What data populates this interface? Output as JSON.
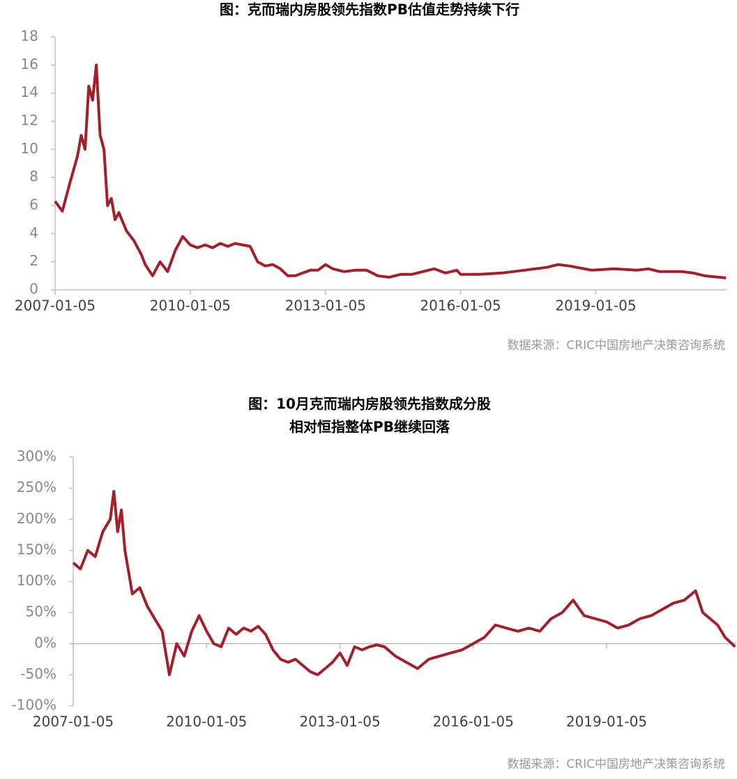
{
  "chart_data": [
    {
      "type": "line",
      "title": [
        "图：克而瑞内房股领先指数PB估值走势持续下行"
      ],
      "note": "数据来源：CRIC中国房地产决策咨询系统",
      "color": "#a3202b",
      "xlim": [
        "2007-01-05",
        "2021-11-30"
      ],
      "xticks": [
        "2007-01-05",
        "2010-01-05",
        "2013-01-05",
        "2016-01-05",
        "2019-01-05"
      ],
      "ylim": [
        0,
        18
      ],
      "yticks": [
        0,
        2,
        4,
        6,
        8,
        10,
        12,
        14,
        16,
        18
      ],
      "x": [
        "2007-01-05",
        "2007-03-05",
        "2007-05-05",
        "2007-07-05",
        "2007-08-05",
        "2007-09-05",
        "2007-10-05",
        "2007-11-05",
        "2007-12-05",
        "2008-01-05",
        "2008-02-05",
        "2008-03-05",
        "2008-04-05",
        "2008-05-05",
        "2008-06-05",
        "2008-08-05",
        "2008-10-05",
        "2008-12-05",
        "2009-01-05",
        "2009-03-05",
        "2009-05-05",
        "2009-07-05",
        "2009-09-05",
        "2009-11-05",
        "2010-01-05",
        "2010-03-05",
        "2010-05-05",
        "2010-07-05",
        "2010-09-05",
        "2010-11-05",
        "2011-01-05",
        "2011-03-05",
        "2011-05-05",
        "2011-07-05",
        "2011-09-05",
        "2011-11-05",
        "2012-01-05",
        "2012-03-05",
        "2012-05-05",
        "2012-07-05",
        "2012-09-05",
        "2012-11-05",
        "2013-01-05",
        "2013-03-05",
        "2013-06-05",
        "2013-09-05",
        "2013-12-05",
        "2014-03-05",
        "2014-06-05",
        "2014-09-05",
        "2014-12-05",
        "2015-03-05",
        "2015-06-05",
        "2015-09-05",
        "2015-12-05",
        "2016-01-05",
        "2016-06-05",
        "2016-12-05",
        "2017-06-05",
        "2017-12-05",
        "2018-03-05",
        "2018-06-05",
        "2018-12-05",
        "2019-06-05",
        "2019-12-05",
        "2020-03-05",
        "2020-06-05",
        "2020-12-05",
        "2021-03-05",
        "2021-06-05",
        "2021-11-26"
      ],
      "values": [
        6.3,
        5.6,
        7.6,
        9.5,
        11,
        10,
        14.5,
        13.5,
        16,
        11,
        10,
        6,
        6.5,
        5,
        5.5,
        4.2,
        3.5,
        2.5,
        1.8,
        1.0,
        2.0,
        1.3,
        2.8,
        3.8,
        3.2,
        3.0,
        3.2,
        3.0,
        3.3,
        3.1,
        3.3,
        3.2,
        3.1,
        2.0,
        1.7,
        1.8,
        1.5,
        1.0,
        1.0,
        1.2,
        1.4,
        1.4,
        1.8,
        1.5,
        1.3,
        1.4,
        1.4,
        1.0,
        0.9,
        1.1,
        1.1,
        1.3,
        1.5,
        1.2,
        1.4,
        1.1,
        1.1,
        1.2,
        1.4,
        1.6,
        1.8,
        1.7,
        1.4,
        1.5,
        1.4,
        1.5,
        1.3,
        1.3,
        1.2,
        1.0,
        0.85
      ]
    },
    {
      "type": "line",
      "title": [
        "图：10月克而瑞内房股领先指数成分股",
        "相对恒指整体PB继续回落"
      ],
      "note": "数据来源：CRIC中国房地产决策咨询系统",
      "color": "#a3202b",
      "xlim": [
        "2007-01-05",
        "2021-11-30"
      ],
      "xticks": [
        "2007-01-05",
        "2010-01-05",
        "2013-01-05",
        "2016-01-05",
        "2019-01-05"
      ],
      "ylim": [
        -100,
        300
      ],
      "yticks": [
        {
          "value": -100,
          "label": "-100%"
        },
        {
          "value": -50,
          "label": "-50%"
        },
        {
          "value": 0,
          "label": "0%"
        },
        {
          "value": 50,
          "label": "50%"
        },
        {
          "value": 100,
          "label": "100%"
        },
        {
          "value": 150,
          "label": "150%"
        },
        {
          "value": 200,
          "label": "200%"
        },
        {
          "value": 250,
          "label": "250%"
        },
        {
          "value": 300,
          "label": "300%"
        }
      ],
      "x": [
        "2007-01-05",
        "2007-03-05",
        "2007-05-05",
        "2007-07-05",
        "2007-09-05",
        "2007-11-05",
        "2007-12-05",
        "2008-01-05",
        "2008-02-05",
        "2008-03-05",
        "2008-05-05",
        "2008-07-05",
        "2008-09-05",
        "2008-11-05",
        "2009-01-05",
        "2009-03-05",
        "2009-05-05",
        "2009-07-05",
        "2009-09-05",
        "2009-11-05",
        "2010-01-05",
        "2010-03-05",
        "2010-05-05",
        "2010-07-05",
        "2010-09-05",
        "2010-11-05",
        "2011-01-05",
        "2011-03-05",
        "2011-05-05",
        "2011-07-05",
        "2011-09-05",
        "2011-11-05",
        "2012-01-05",
        "2012-03-05",
        "2012-05-05",
        "2012-07-05",
        "2012-09-05",
        "2012-11-05",
        "2013-01-05",
        "2013-03-05",
        "2013-05-05",
        "2013-07-05",
        "2013-09-05",
        "2013-11-05",
        "2014-01-05",
        "2014-04-05",
        "2014-07-05",
        "2014-10-05",
        "2015-01-05",
        "2015-04-05",
        "2015-07-05",
        "2015-10-05",
        "2016-01-05",
        "2016-04-05",
        "2016-07-05",
        "2016-10-05",
        "2017-01-05",
        "2017-04-05",
        "2017-07-05",
        "2017-10-05",
        "2018-01-05",
        "2018-04-05",
        "2018-07-05",
        "2018-10-05",
        "2019-01-05",
        "2019-04-05",
        "2019-07-05",
        "2019-10-05",
        "2020-01-05",
        "2020-04-05",
        "2020-07-05",
        "2020-10-05",
        "2021-01-05",
        "2021-03-05",
        "2021-05-05",
        "2021-07-05",
        "2021-09-05",
        "2021-11-26"
      ],
      "values": [
        130,
        120,
        150,
        140,
        180,
        200,
        245,
        180,
        215,
        150,
        80,
        90,
        60,
        40,
        20,
        -50,
        0,
        -20,
        20,
        45,
        20,
        0,
        -5,
        25,
        15,
        25,
        20,
        28,
        15,
        -10,
        -25,
        -30,
        -25,
        -35,
        -45,
        -50,
        -40,
        -30,
        -15,
        -35,
        -5,
        -10,
        -5,
        -2,
        -5,
        -20,
        -30,
        -40,
        -25,
        -20,
        -15,
        -10,
        0,
        10,
        30,
        25,
        20,
        25,
        20,
        40,
        50,
        70,
        45,
        40,
        35,
        25,
        30,
        40,
        45,
        55,
        65,
        70,
        85,
        50,
        40,
        30,
        10,
        -5
      ]
    }
  ]
}
